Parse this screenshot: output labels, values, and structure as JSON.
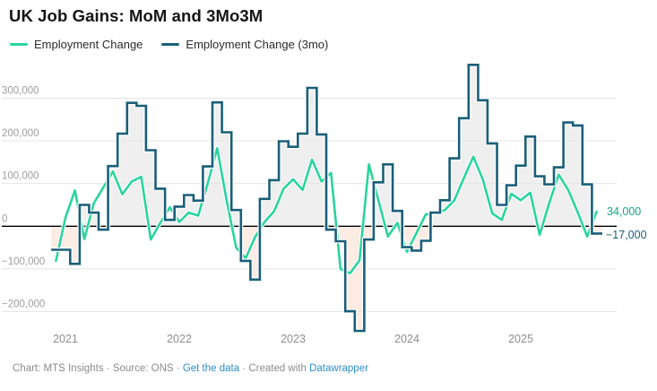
{
  "title": "UK Job Gains: MoM and 3Mo3M",
  "legend": [
    {
      "label": "Employment Change",
      "color": "#2ad49e"
    },
    {
      "label": "Employment Change (3mo)",
      "color": "#1a5f78"
    }
  ],
  "colors": {
    "mom_line": "#2ad49e",
    "three_mo_line": "#1a5f78",
    "positive_fill": "#efefef",
    "negative_fill": "#fdece4",
    "gridline": "#e4e4e4",
    "zero_line": "#000000",
    "tick_text": "#9e9e9e",
    "link_blue": "#2d8dc8"
  },
  "end_labels": {
    "mom": "34,000",
    "three_mo": "−17,000"
  },
  "footer": {
    "text1": "Chart: MTS Insights · Source: ONS · ",
    "link_data": "Get the data",
    "text2": " · Created with ",
    "link_dw": "Datawrapper"
  },
  "chart_data": {
    "type": "line",
    "note": "Monthly UK employment change; MoM line plus 3-month step-area series. Values in persons.",
    "x": [
      "2020-12",
      "2021-01",
      "2021-02",
      "2021-03",
      "2021-04",
      "2021-05",
      "2021-06",
      "2021-07",
      "2021-08",
      "2021-09",
      "2021-10",
      "2021-11",
      "2021-12",
      "2022-01",
      "2022-02",
      "2022-03",
      "2022-04",
      "2022-05",
      "2022-06",
      "2022-07",
      "2022-08",
      "2022-09",
      "2022-10",
      "2022-11",
      "2022-12",
      "2023-01",
      "2023-02",
      "2023-03",
      "2023-04",
      "2023-05",
      "2023-06",
      "2023-07",
      "2023-08",
      "2023-09",
      "2023-10",
      "2023-11",
      "2023-12",
      "2024-01",
      "2024-02",
      "2024-03",
      "2024-04",
      "2024-05",
      "2024-06",
      "2024-07",
      "2024-08",
      "2024-09",
      "2024-10",
      "2024-11",
      "2024-12",
      "2025-01",
      "2025-02",
      "2025-03",
      "2025-04",
      "2025-05",
      "2025-06",
      "2025-07",
      "2025-08",
      "2025-09"
    ],
    "series": [
      {
        "name": "Employment Change",
        "style": "line",
        "color": "#2ad49e",
        "values": [
          -81000,
          20000,
          84000,
          -30000,
          54000,
          91000,
          128000,
          75000,
          105000,
          116000,
          -31000,
          8000,
          44000,
          10000,
          32000,
          25000,
          100000,
          183000,
          60000,
          -50000,
          -75000,
          -25000,
          10000,
          35000,
          88000,
          110000,
          85000,
          156000,
          105000,
          125000,
          -100000,
          -110000,
          -80000,
          145000,
          61000,
          -24000,
          8000,
          -60000,
          -16000,
          28000,
          30000,
          38000,
          61000,
          113000,
          163000,
          110000,
          30000,
          15000,
          76000,
          61000,
          79000,
          -20000,
          54000,
          121000,
          85000,
          33000,
          -24000,
          34000
        ]
      },
      {
        "name": "Employment Change (3mo)",
        "style": "step-area",
        "color": "#1a5f78",
        "values": [
          -55000,
          -55000,
          -88000,
          50000,
          32000,
          -8000,
          141000,
          217000,
          289000,
          282000,
          178000,
          88000,
          15000,
          46000,
          73000,
          60000,
          140000,
          290000,
          220000,
          38000,
          -81000,
          -125000,
          64000,
          108000,
          199000,
          186000,
          217000,
          324000,
          215000,
          -8000,
          -35000,
          -199000,
          -245000,
          -31000,
          103000,
          145000,
          36000,
          -49000,
          -57000,
          -34000,
          32000,
          61000,
          159000,
          253000,
          378000,
          295000,
          194000,
          50000,
          96000,
          142000,
          210000,
          117000,
          98000,
          138000,
          243000,
          236000,
          98000,
          -17000
        ]
      }
    ],
    "yticks": [
      {
        "value": 300000,
        "label": "300,000"
      },
      {
        "value": 200000,
        "label": "200,000"
      },
      {
        "value": 100000,
        "label": "100,000"
      },
      {
        "value": 0,
        "label": "0"
      },
      {
        "value": -100000,
        "label": "−100,000"
      },
      {
        "value": -200000,
        "label": "−200,000"
      }
    ],
    "xticks": [
      "2021",
      "2022",
      "2023",
      "2024",
      "2025"
    ],
    "ylim": [
      -260000,
      400000
    ],
    "grid": true,
    "legend_position": "top",
    "end_value_labels": {
      "Employment Change": 34000,
      "Employment Change (3mo)": -17000
    }
  }
}
